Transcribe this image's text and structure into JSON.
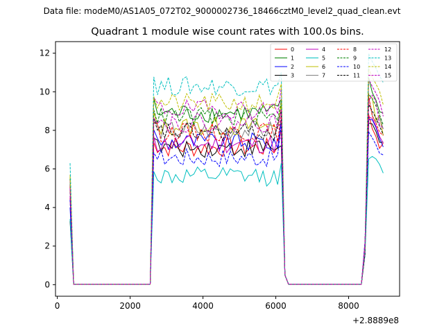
{
  "figure": {
    "suptitle": "Data file: modeM0/AS1A05_072T02_9000002736_18466cztM0_level2_quad_clean.evt"
  },
  "chart_data": {
    "type": "line",
    "title": "Quadrant 1 module wise count rates with 100.0s bins.",
    "xlabel": "",
    "ylabel": "",
    "x_offset_label": "+2.8889e8",
    "xlim": [
      -50,
      9400
    ],
    "ylim": [
      -0.6,
      12.6
    ],
    "x_ticks": [
      0,
      2000,
      4000,
      6000,
      8000
    ],
    "x_tick_labels": [
      "0",
      "2000",
      "4000",
      "6000",
      "8000"
    ],
    "y_ticks": [
      0,
      2,
      4,
      6,
      8,
      10,
      12
    ],
    "y_tick_labels": [
      "0",
      "2",
      "4",
      "6",
      "8",
      "10",
      "12"
    ],
    "grid": false,
    "legend_position": "top-right",
    "segments": [
      {
        "start": 350,
        "end": 450,
        "low_tail": true
      },
      {
        "start": 450,
        "end": 2550,
        "gap": true
      },
      {
        "start": 2550,
        "end": 6200
      },
      {
        "start": 6200,
        "end": 8350,
        "gap": true
      },
      {
        "start": 8350,
        "end": 8980
      }
    ],
    "series": [
      {
        "name": "0",
        "color": "#ff0000",
        "dash": "solid",
        "start_value": 4.5,
        "level": 7.1,
        "end_level": 8.0
      },
      {
        "name": "1",
        "color": "#008000",
        "dash": "solid",
        "start_value": 5.2,
        "level": 8.9,
        "end_level": 9.6
      },
      {
        "name": "2",
        "color": "#0000ff",
        "dash": "solid",
        "start_value": 4.0,
        "level": 7.4,
        "end_level": 8.6
      },
      {
        "name": "3",
        "color": "#000000",
        "dash": "solid",
        "start_value": 3.3,
        "level": 7.1,
        "end_level": 7.2
      },
      {
        "name": "4",
        "color": "#bf00bf",
        "dash": "solid",
        "start_value": 4.6,
        "level": 7.3,
        "end_level": 7.6
      },
      {
        "name": "5",
        "color": "#00bfbf",
        "dash": "solid",
        "start_value": 3.4,
        "level": 5.6,
        "end_level": 6.3
      },
      {
        "name": "6",
        "color": "#bfbf00",
        "dash": "solid",
        "start_value": 5.7,
        "level": 8.2,
        "end_level": 9.4
      },
      {
        "name": "7",
        "color": "#808080",
        "dash": "solid",
        "start_value": 5.0,
        "level": 8.0,
        "end_level": 8.4
      },
      {
        "name": "8",
        "color": "#ff0000",
        "dash": "dashed",
        "start_value": 5.1,
        "level": 7.9,
        "end_level": 8.8
      },
      {
        "name": "9",
        "color": "#008000",
        "dash": "dashed",
        "start_value": 5.5,
        "level": 8.7,
        "end_level": 9.5
      },
      {
        "name": "10",
        "color": "#0000ff",
        "dash": "dashed",
        "start_value": 4.4,
        "level": 6.6,
        "end_level": 8.3
      },
      {
        "name": "11",
        "color": "#000000",
        "dash": "dashed",
        "start_value": 5.0,
        "level": 7.9,
        "end_level": 9.0
      },
      {
        "name": "12",
        "color": "#bf00bf",
        "dash": "dashed",
        "start_value": 5.4,
        "level": 9.1,
        "end_level": 10.2
      },
      {
        "name": "13",
        "color": "#00bfbf",
        "dash": "dashed",
        "start_value": 6.3,
        "level": 10.3,
        "end_level": 11.0
      },
      {
        "name": "14",
        "color": "#bfbf00",
        "dash": "dashed",
        "start_value": 5.6,
        "level": 9.4,
        "end_level": 10.4
      },
      {
        "name": "15",
        "color": "#bf00bf",
        "dash": "dashed",
        "start_value": 5.0,
        "level": 8.4,
        "end_level": 9.1
      }
    ]
  }
}
